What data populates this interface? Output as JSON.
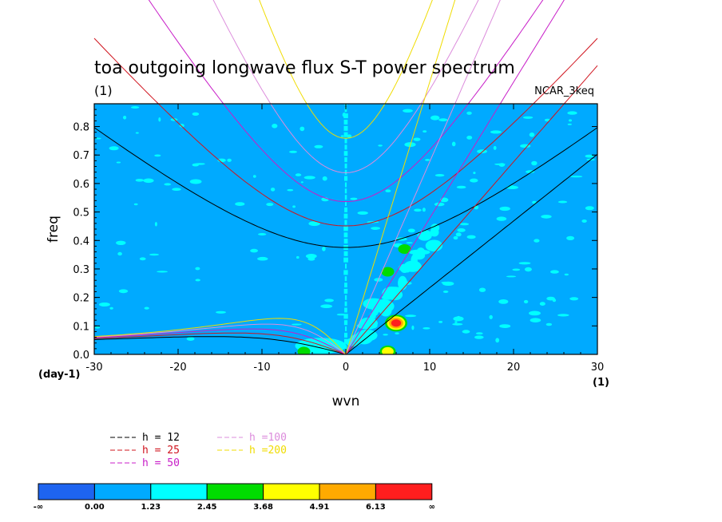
{
  "chart_data": {
    "type": "heatmap",
    "title": "toa outgoing longwave flux S-T power spectrum",
    "subtitle": "(1)",
    "annotation": "NCAR_3keq",
    "xlabel": "wvn",
    "ylabel": "freq",
    "x_unit": "(1)",
    "y_unit": "(day-1)",
    "xlim": [
      -30,
      30
    ],
    "ylim": [
      0,
      0.88
    ],
    "xticks": [
      "-30",
      "-20",
      "-10",
      "0",
      "10",
      "20",
      "30"
    ],
    "yticks": [
      "0.0",
      "0.1",
      "0.2",
      "0.3",
      "0.4",
      "0.5",
      "0.6",
      "0.7",
      "0.8"
    ],
    "background_level": "0.00 to 1.23",
    "hotspots": [
      {
        "x": 6,
        "y": 0.11,
        "level": "6.13+"
      },
      {
        "x": 5,
        "y": 0.01,
        "level": "4.91"
      },
      {
        "x": -5,
        "y": 0.01,
        "level": "2.45"
      },
      {
        "x": 7,
        "y": 0.37,
        "level": "2.45"
      },
      {
        "x": 5,
        "y": 0.29,
        "level": "2.45"
      }
    ],
    "dispersion_curves": [
      {
        "name": "h = 12",
        "color": "#000000"
      },
      {
        "name": "h = 25",
        "color": "#d0141e"
      },
      {
        "name": "h = 50",
        "color": "#c81ec8"
      },
      {
        "name": "h =100",
        "color": "#dc8cdc"
      },
      {
        "name": "h =200",
        "color": "#f0dc00"
      }
    ],
    "colorbar": {
      "labels": [
        "-∞",
        "0.00",
        "1.23",
        "2.45",
        "3.68",
        "4.91",
        "6.13",
        "∞"
      ],
      "colors": [
        "#1e64f0",
        "#00aaff",
        "#00ffff",
        "#00dc00",
        "#ffff00",
        "#ffaa00",
        "#ff1e1e"
      ]
    }
  }
}
